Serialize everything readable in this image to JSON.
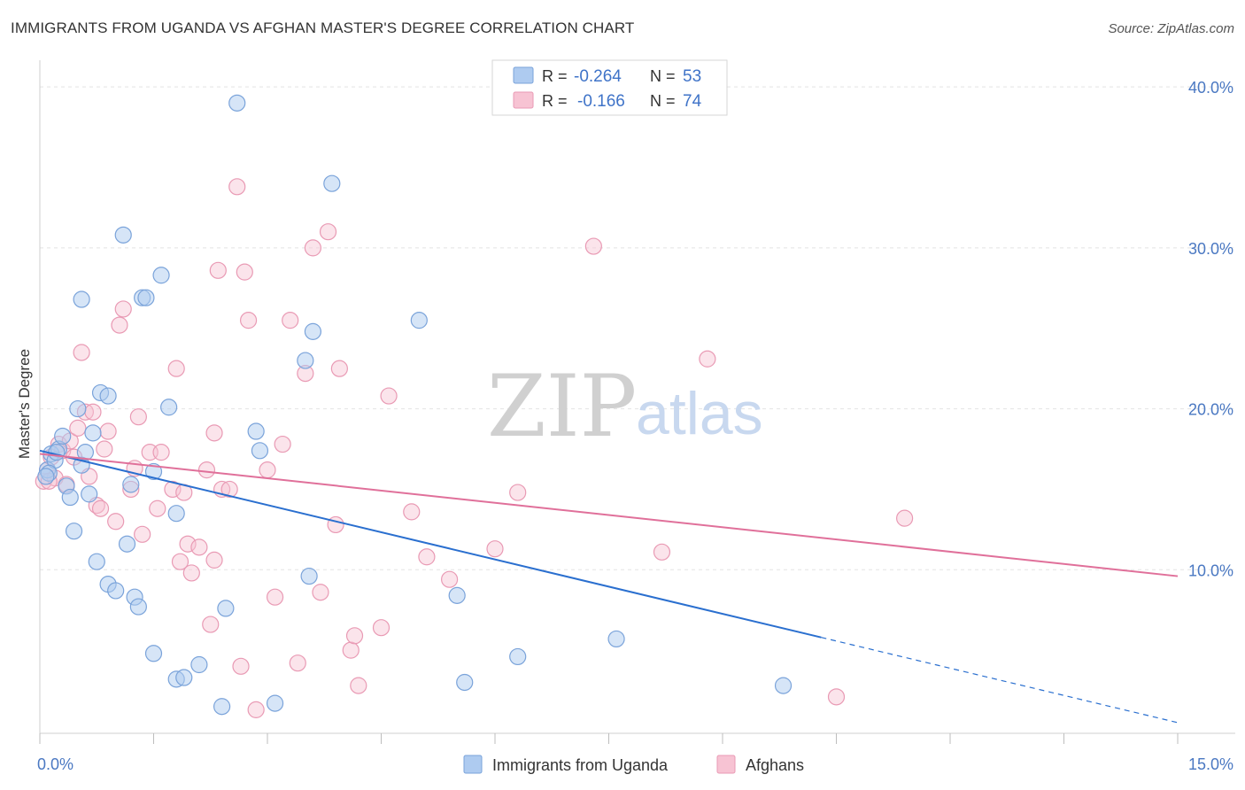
{
  "title": "IMMIGRANTS FROM UGANDA VS AFGHAN MASTER'S DEGREE CORRELATION CHART",
  "source": "Source: ZipAtlas.com",
  "watermark": {
    "part1": "ZIP",
    "part2": "atlas"
  },
  "colors": {
    "uganda_fill": "#aecbf0",
    "uganda_stroke": "#7aa3da",
    "uganda_line": "#2a6fcf",
    "afghan_fill": "#f7c3d3",
    "afghan_stroke": "#e99ab4",
    "afghan_line": "#e0709a",
    "grid": "#e3e3e3",
    "tick_text": "#4a78c2"
  },
  "legend_top": {
    "r_label": "R =",
    "n_label": "N =",
    "rows": [
      {
        "r": "-0.264",
        "n": "53"
      },
      {
        "r": "-0.166",
        "n": "74"
      }
    ]
  },
  "chart_data": {
    "type": "scatter",
    "title": "IMMIGRANTS FROM UGANDA VS AFGHAN MASTER'S DEGREE CORRELATION CHART",
    "xlabel": "",
    "ylabel": "Master's Degree",
    "xlim": [
      0,
      15
    ],
    "ylim": [
      0,
      41
    ],
    "x_tick_labels": [
      "0.0%",
      "15.0%"
    ],
    "y_ticks": [
      10,
      20,
      30,
      40
    ],
    "y_tick_labels": [
      "10.0%",
      "20.0%",
      "30.0%",
      "40.0%"
    ],
    "grid": true,
    "legend_position": "bottom-center",
    "series": [
      {
        "name": "Immigrants from Uganda",
        "r": -0.264,
        "n": 53,
        "trend": {
          "x0": 0,
          "y0": 17.4,
          "x1": 15,
          "y1": 0.5,
          "solid_until_x": 10.3
        },
        "points": [
          [
            0.1,
            16.2
          ],
          [
            0.15,
            17.2
          ],
          [
            0.2,
            16.8
          ],
          [
            0.25,
            17.5
          ],
          [
            0.3,
            18.3
          ],
          [
            0.35,
            15.2
          ],
          [
            0.4,
            14.5
          ],
          [
            0.45,
            12.4
          ],
          [
            0.5,
            20.0
          ],
          [
            0.55,
            16.5
          ],
          [
            0.6,
            17.3
          ],
          [
            0.65,
            14.7
          ],
          [
            0.7,
            18.5
          ],
          [
            0.55,
            26.8
          ],
          [
            0.75,
            10.5
          ],
          [
            0.8,
            21.0
          ],
          [
            0.9,
            20.8
          ],
          [
            0.9,
            9.1
          ],
          [
            1.0,
            8.7
          ],
          [
            1.1,
            30.8
          ],
          [
            1.15,
            11.6
          ],
          [
            1.2,
            15.3
          ],
          [
            1.25,
            8.3
          ],
          [
            1.3,
            7.7
          ],
          [
            1.35,
            26.9
          ],
          [
            1.4,
            26.9
          ],
          [
            1.5,
            16.1
          ],
          [
            1.6,
            28.3
          ],
          [
            1.7,
            20.1
          ],
          [
            1.8,
            13.5
          ],
          [
            1.8,
            3.2
          ],
          [
            1.9,
            3.3
          ],
          [
            1.5,
            4.8
          ],
          [
            2.1,
            4.1
          ],
          [
            2.4,
            1.5
          ],
          [
            2.45,
            7.6
          ],
          [
            2.6,
            39.0
          ],
          [
            2.85,
            18.6
          ],
          [
            2.9,
            17.4
          ],
          [
            3.1,
            1.7
          ],
          [
            3.5,
            23.0
          ],
          [
            3.55,
            9.6
          ],
          [
            3.6,
            24.8
          ],
          [
            3.85,
            34.0
          ],
          [
            5.0,
            25.5
          ],
          [
            5.5,
            8.4
          ],
          [
            5.6,
            3.0
          ],
          [
            6.3,
            4.6
          ],
          [
            7.6,
            5.7
          ],
          [
            9.8,
            2.8
          ],
          [
            0.12,
            16.0
          ],
          [
            0.08,
            15.8
          ],
          [
            0.22,
            17.3
          ]
        ]
      },
      {
        "name": "Afghans",
        "r": -0.166,
        "n": 74,
        "trend": {
          "x0": 0,
          "y0": 17.2,
          "x1": 15,
          "y1": 9.6
        },
        "points": [
          [
            0.05,
            15.5
          ],
          [
            0.1,
            16.2
          ],
          [
            0.15,
            17.0
          ],
          [
            0.2,
            15.7
          ],
          [
            0.25,
            17.8
          ],
          [
            0.3,
            17.4
          ],
          [
            0.35,
            15.3
          ],
          [
            0.4,
            18.0
          ],
          [
            0.45,
            17.0
          ],
          [
            0.5,
            18.8
          ],
          [
            0.55,
            23.5
          ],
          [
            0.6,
            19.8
          ],
          [
            0.65,
            15.8
          ],
          [
            0.7,
            19.8
          ],
          [
            0.75,
            14.0
          ],
          [
            0.8,
            13.8
          ],
          [
            0.85,
            17.5
          ],
          [
            0.9,
            18.6
          ],
          [
            1.0,
            13.0
          ],
          [
            1.05,
            25.2
          ],
          [
            1.1,
            26.2
          ],
          [
            1.2,
            15.0
          ],
          [
            1.25,
            16.3
          ],
          [
            1.3,
            19.5
          ],
          [
            1.35,
            12.2
          ],
          [
            1.45,
            17.3
          ],
          [
            1.55,
            13.8
          ],
          [
            1.6,
            17.3
          ],
          [
            1.75,
            15.0
          ],
          [
            1.8,
            22.5
          ],
          [
            1.85,
            10.5
          ],
          [
            1.9,
            14.8
          ],
          [
            1.95,
            11.6
          ],
          [
            2.0,
            9.8
          ],
          [
            2.1,
            11.4
          ],
          [
            2.2,
            16.2
          ],
          [
            2.25,
            6.6
          ],
          [
            2.3,
            10.6
          ],
          [
            2.3,
            18.5
          ],
          [
            2.35,
            28.6
          ],
          [
            2.4,
            15.0
          ],
          [
            2.5,
            15.0
          ],
          [
            2.6,
            33.8
          ],
          [
            2.65,
            4.0
          ],
          [
            2.7,
            28.5
          ],
          [
            2.75,
            25.5
          ],
          [
            2.85,
            1.3
          ],
          [
            3.0,
            16.2
          ],
          [
            3.1,
            8.3
          ],
          [
            3.2,
            17.8
          ],
          [
            3.3,
            25.5
          ],
          [
            3.4,
            4.2
          ],
          [
            3.5,
            22.2
          ],
          [
            3.6,
            30.0
          ],
          [
            3.7,
            8.6
          ],
          [
            3.8,
            31.0
          ],
          [
            3.9,
            12.8
          ],
          [
            3.95,
            22.5
          ],
          [
            4.1,
            5.0
          ],
          [
            4.15,
            5.9
          ],
          [
            4.2,
            2.8
          ],
          [
            4.5,
            6.4
          ],
          [
            4.6,
            20.8
          ],
          [
            4.9,
            13.6
          ],
          [
            5.1,
            10.8
          ],
          [
            5.4,
            9.4
          ],
          [
            6.0,
            11.3
          ],
          [
            6.3,
            14.8
          ],
          [
            7.3,
            30.1
          ],
          [
            8.2,
            11.1
          ],
          [
            8.8,
            23.1
          ],
          [
            10.5,
            2.1
          ],
          [
            11.4,
            13.2
          ],
          [
            0.12,
            15.5
          ]
        ]
      }
    ]
  }
}
